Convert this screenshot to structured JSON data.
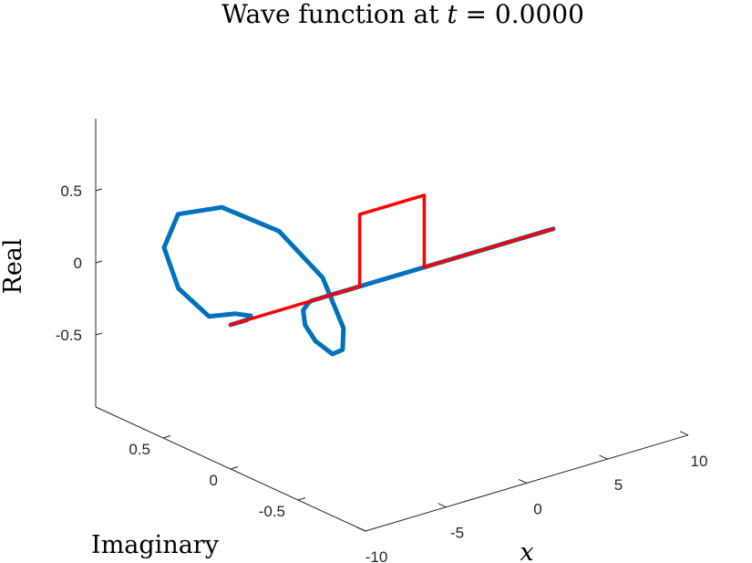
{
  "chart_data": {
    "type": "line",
    "projection": "3d",
    "title": "Wave function at t = 0.0000",
    "title_parts": {
      "prefix": "Wave function at ",
      "variable": "t",
      "suffix": " = 0.0000"
    },
    "xlabel": "x",
    "ylabel": "Imaginary",
    "zlabel": "Real",
    "xlim": [
      -10,
      10
    ],
    "ylim": [
      -1,
      1
    ],
    "zlim": [
      -1,
      1
    ],
    "xticks": [
      -10,
      -5,
      0,
      5,
      10
    ],
    "xtick_labels": [
      "-10",
      "-5",
      "0",
      "5",
      "10"
    ],
    "yticks": [
      -0.5,
      0,
      0.5
    ],
    "ytick_labels": [
      "-0.5",
      "0",
      "0.5"
    ],
    "zticks": [
      -0.5,
      0,
      0.5
    ],
    "ztick_labels": [
      "-0.5",
      "0",
      "0.5"
    ],
    "grid": false,
    "series": [
      {
        "color": "#0072BD",
        "description": "wave packet with imaginary-real spiral",
        "x": [
          -10.0,
          -9.0,
          -8.5,
          -8.2,
          -8.0,
          -7.8,
          -7.6,
          -7.4,
          -7.2,
          -7.0,
          -6.8,
          -6.6,
          -6.4,
          -6.2,
          -6.0,
          -5.8,
          -5.5,
          -5.2,
          -5.0,
          -4.8,
          -4.5,
          -4.0,
          -3.0,
          -2.0,
          0.0,
          2.0,
          5.0,
          10.0
        ],
        "imag": [
          0.0,
          0.0,
          0.03,
          0.18,
          0.4,
          0.65,
          0.78,
          0.7,
          0.4,
          0.0,
          -0.3,
          -0.43,
          -0.4,
          -0.3,
          -0.15,
          -0.05,
          0.0,
          0.0,
          0.0,
          0.0,
          0.0,
          0.0,
          0.0,
          0.0,
          0.0,
          0.0,
          0.0,
          0.0
        ],
        "real": [
          0.0,
          0.0,
          0.0,
          -0.06,
          -0.18,
          -0.1,
          0.12,
          0.38,
          0.55,
          0.55,
          0.35,
          0.05,
          -0.12,
          -0.2,
          -0.18,
          -0.12,
          -0.05,
          -0.01,
          0.0,
          0.0,
          0.0,
          0.0,
          0.0,
          0.0,
          0.0,
          0.0,
          0.0,
          0.0
        ]
      },
      {
        "color": "#FF0000",
        "description": "square barrier potential",
        "x": [
          -10.0,
          -2.0,
          -2.0,
          2.0,
          2.0,
          10.0
        ],
        "imag": [
          0.0,
          0.0,
          0.0,
          0.0,
          0.0,
          0.0
        ],
        "real": [
          0.0,
          0.0,
          0.5,
          0.5,
          0.0,
          0.0
        ]
      }
    ]
  }
}
